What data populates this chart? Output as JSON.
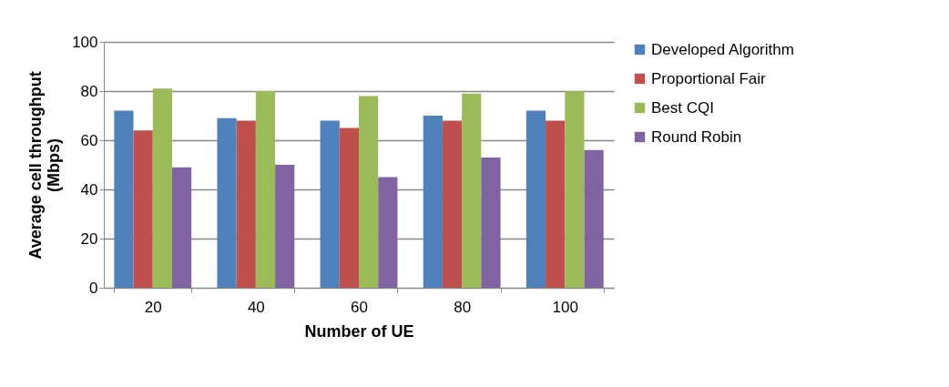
{
  "chart_data": {
    "type": "bar",
    "xlabel": "Number of UE",
    "ylabel": "Average cell throughput (Mbps)",
    "categories": [
      "20",
      "40",
      "60",
      "80",
      "100"
    ],
    "series": [
      {
        "name": "Developed Algorithm",
        "color": "#4f81bd",
        "values": [
          72,
          69,
          68,
          70,
          72
        ]
      },
      {
        "name": "Proportional Fair",
        "color": "#c0504d",
        "values": [
          64,
          68,
          65,
          68,
          68
        ]
      },
      {
        "name": "Best CQI",
        "color": "#9bbb59",
        "values": [
          81,
          80,
          78,
          79,
          80
        ]
      },
      {
        "name": "Round Robin",
        "color": "#8064a2",
        "values": [
          49,
          50,
          45,
          53,
          56
        ]
      }
    ],
    "ylim": [
      0,
      100
    ],
    "yticks": [
      0,
      20,
      40,
      60,
      80,
      100
    ],
    "grid": "y",
    "legend": "right"
  }
}
